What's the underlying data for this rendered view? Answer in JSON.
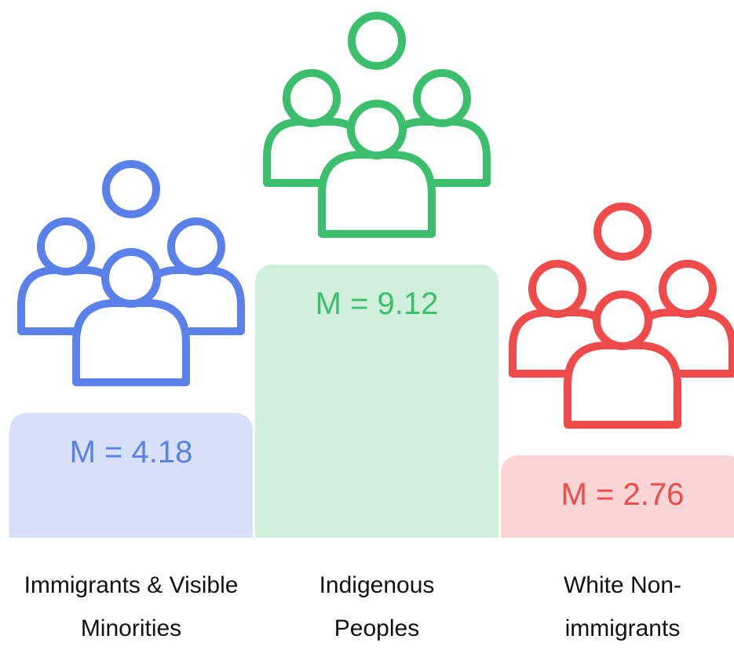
{
  "chart_data": {
    "type": "bar",
    "categories": [
      "Immigrants & Visible Minorities",
      "Indigenous Peoples",
      "White Non-immigrants"
    ],
    "values": [
      4.18,
      9.12,
      2.76
    ],
    "value_labels": [
      "M = 4.18",
      "M = 9.12",
      "M = 2.76"
    ],
    "colors": [
      "#5a80ea",
      "#3cbf6c",
      "#f04a4a"
    ]
  }
}
